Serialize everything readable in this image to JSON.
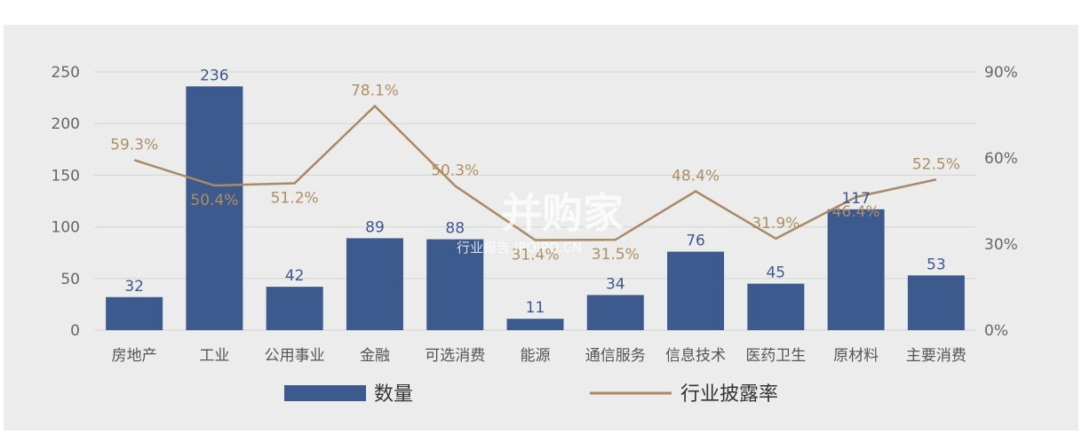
{
  "chart_data": {
    "type": "bar",
    "categories": [
      "房地产",
      "工业",
      "公用事业",
      "金融",
      "可选消费",
      "能源",
      "通信服务",
      "信息技术",
      "医药卫生",
      "原材料",
      "主要消费"
    ],
    "series": [
      {
        "name": "数量",
        "type": "bar",
        "axis": "left",
        "values": [
          32,
          236,
          42,
          89,
          88,
          11,
          34,
          76,
          45,
          117,
          53
        ],
        "labels": [
          "32",
          "236",
          "42",
          "89",
          "88",
          "11",
          "34",
          "76",
          "45",
          "117",
          "53"
        ],
        "color": "#3d5a8f"
      },
      {
        "name": "行业披露率",
        "type": "line",
        "axis": "right",
        "values": [
          59.3,
          50.4,
          51.2,
          78.1,
          50.3,
          31.4,
          31.5,
          48.4,
          31.9,
          46.4,
          52.5
        ],
        "labels": [
          "59.3%",
          "50.4%",
          "51.2%",
          "78.1%",
          "50.3%",
          "31.4%",
          "31.5%",
          "48.4%",
          "31.9%",
          "46.4%",
          "52.5%"
        ],
        "color": "#a98a66"
      }
    ],
    "y_left": {
      "ylim": [
        0,
        250
      ],
      "ticks": [
        "0",
        "50",
        "100",
        "150",
        "200",
        "250"
      ]
    },
    "y_right": {
      "ylim": [
        0,
        90
      ],
      "ticks": [
        "0%",
        "30%",
        "60%",
        "90%"
      ]
    },
    "grid": true,
    "legend": "bottom"
  },
  "watermark": {
    "title": "并购家",
    "subtitle": "行业报告 IPOIPO.CN"
  },
  "colors": {
    "background": "#ececec",
    "bar": "#3d5a8f",
    "line": "#a98a66",
    "grid": "#d4d4d4"
  }
}
